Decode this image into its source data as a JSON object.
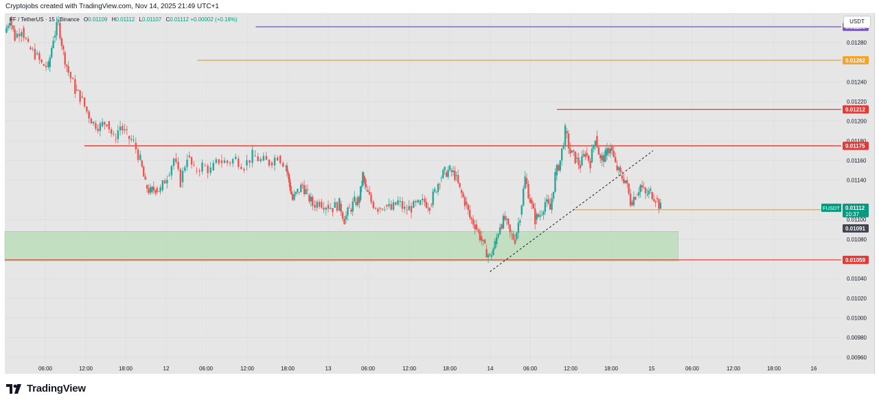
{
  "header": {
    "credit": "Cryptojobs created with TradingView.com, Nov 14, 2025 21:49 UTC+1"
  },
  "legend": {
    "symbol": "FF / TetherUS · 15 · Binance",
    "o_label": "O",
    "o": "0.01109",
    "h_label": "H",
    "h": "0.01112",
    "l_label": "L",
    "l": "0.01107",
    "c_label": "C",
    "c": "0.01112",
    "change": "+0.00002 (+0.18%)"
  },
  "currency_button": "USDT",
  "footer": {
    "brand": "TradingView"
  },
  "colors": {
    "up": "#26a69a",
    "down": "#ef5350",
    "red_level": "#e53935",
    "orange_level": "#f7a325",
    "purple_level": "#7e57c2",
    "zone_fill": "#b7dcb5",
    "current_badge": "#089981",
    "dark_badge": "#434651"
  },
  "chart_data": {
    "type": "candlestick",
    "ylim": [
      0.00955,
      0.0131
    ],
    "y_ticks": [
      "0.00960",
      "0.00980",
      "0.01000",
      "0.01020",
      "0.01040",
      "0.01080",
      "0.01100",
      "0.01140",
      "0.01160",
      "0.01180",
      "0.01200",
      "0.01220",
      "0.01240",
      "0.01280"
    ],
    "x_ticks": [
      "06:00",
      "12:00",
      "18:00",
      "12",
      "06:00",
      "12:00",
      "18:00",
      "13",
      "06:00",
      "12:00",
      "18:00",
      "14",
      "06:00",
      "12:00",
      "18:00",
      "15",
      "06:00",
      "12:00",
      "18:00",
      "16"
    ],
    "horizontal_levels": [
      {
        "value": 0.01296,
        "label": "0.01296",
        "color": "#7e57c2",
        "from": 0.3
      },
      {
        "value": 0.01262,
        "label": "0.01262",
        "color": "#f7a325",
        "from": 0.23
      },
      {
        "value": 0.01212,
        "label": "0.01212",
        "color": "#e53935",
        "from": 0.66
      },
      {
        "value": 0.01175,
        "label": "0.01175",
        "color": "#e53935",
        "from": 0.095
      },
      {
        "value": 0.0111,
        "label": "0.01110",
        "color": "#f7a325",
        "from": 0.68
      },
      {
        "value": 0.01059,
        "label": "0.01059",
        "color": "#e53935",
        "from": 0.0
      }
    ],
    "current_price": {
      "symbol": "FUSDT",
      "value": 0.01112,
      "label": "0.01112",
      "countdown": "10:37"
    },
    "marker_price": {
      "value": 0.01091,
      "label": "0.01091"
    },
    "demand_zone": {
      "y_top": 0.01088,
      "y_bottom": 0.01058,
      "x_from": 0.0,
      "x_to": 0.805
    },
    "trendline": {
      "x1": 0.58,
      "y1": 0.01047,
      "x2": 0.775,
      "y2": 0.0117,
      "style": "dashed"
    },
    "price_path": [
      [
        0.0,
        0.0129
      ],
      [
        0.006,
        0.01305
      ],
      [
        0.012,
        0.01285
      ],
      [
        0.02,
        0.01295
      ],
      [
        0.028,
        0.01275
      ],
      [
        0.036,
        0.01268
      ],
      [
        0.044,
        0.01258
      ],
      [
        0.052,
        0.01255
      ],
      [
        0.058,
        0.01285
      ],
      [
        0.064,
        0.013
      ],
      [
        0.07,
        0.0127
      ],
      [
        0.076,
        0.0125
      ],
      [
        0.084,
        0.01232
      ],
      [
        0.09,
        0.01225
      ],
      [
        0.098,
        0.0121
      ],
      [
        0.106,
        0.01198
      ],
      [
        0.114,
        0.01195
      ],
      [
        0.122,
        0.012
      ],
      [
        0.13,
        0.01182
      ],
      [
        0.138,
        0.01195
      ],
      [
        0.146,
        0.01185
      ],
      [
        0.154,
        0.01178
      ],
      [
        0.162,
        0.0116
      ],
      [
        0.168,
        0.01135
      ],
      [
        0.174,
        0.01128
      ],
      [
        0.18,
        0.01132
      ],
      [
        0.186,
        0.0113
      ],
      [
        0.194,
        0.01145
      ],
      [
        0.202,
        0.01162
      ],
      [
        0.21,
        0.01138
      ],
      [
        0.218,
        0.01165
      ],
      [
        0.226,
        0.0115
      ],
      [
        0.236,
        0.01155
      ],
      [
        0.246,
        0.0115
      ],
      [
        0.256,
        0.0116
      ],
      [
        0.266,
        0.01158
      ],
      [
        0.276,
        0.01162
      ],
      [
        0.286,
        0.01155
      ],
      [
        0.296,
        0.01165
      ],
      [
        0.306,
        0.0116
      ],
      [
        0.316,
        0.01158
      ],
      [
        0.326,
        0.01165
      ],
      [
        0.336,
        0.01155
      ],
      [
        0.34,
        0.01138
      ],
      [
        0.344,
        0.0112
      ],
      [
        0.35,
        0.01128
      ],
      [
        0.356,
        0.01135
      ],
      [
        0.362,
        0.01125
      ],
      [
        0.368,
        0.01115
      ],
      [
        0.376,
        0.01118
      ],
      [
        0.384,
        0.01115
      ],
      [
        0.392,
        0.01112
      ],
      [
        0.4,
        0.01116
      ],
      [
        0.406,
        0.011
      ],
      [
        0.412,
        0.0111
      ],
      [
        0.418,
        0.01118
      ],
      [
        0.424,
        0.0112
      ],
      [
        0.428,
        0.01145
      ],
      [
        0.432,
        0.0113
      ],
      [
        0.438,
        0.01118
      ],
      [
        0.446,
        0.01112
      ],
      [
        0.454,
        0.01115
      ],
      [
        0.462,
        0.0111
      ],
      [
        0.47,
        0.01118
      ],
      [
        0.478,
        0.0111
      ],
      [
        0.486,
        0.01112
      ],
      [
        0.494,
        0.01115
      ],
      [
        0.502,
        0.01118
      ],
      [
        0.508,
        0.01115
      ],
      [
        0.514,
        0.01128
      ],
      [
        0.52,
        0.01142
      ],
      [
        0.526,
        0.01148
      ],
      [
        0.532,
        0.0115
      ],
      [
        0.538,
        0.01145
      ],
      [
        0.544,
        0.0113
      ],
      [
        0.55,
        0.01118
      ],
      [
        0.556,
        0.01102
      ],
      [
        0.562,
        0.01095
      ],
      [
        0.568,
        0.01083
      ],
      [
        0.574,
        0.0107
      ],
      [
        0.58,
        0.01062
      ],
      [
        0.586,
        0.01075
      ],
      [
        0.592,
        0.01095
      ],
      [
        0.598,
        0.011
      ],
      [
        0.604,
        0.01085
      ],
      [
        0.61,
        0.0108
      ],
      [
        0.616,
        0.01105
      ],
      [
        0.622,
        0.01142
      ],
      [
        0.628,
        0.0112
      ],
      [
        0.634,
        0.011
      ],
      [
        0.64,
        0.01105
      ],
      [
        0.646,
        0.01118
      ],
      [
        0.652,
        0.0111
      ],
      [
        0.658,
        0.01145
      ],
      [
        0.664,
        0.0116
      ],
      [
        0.67,
        0.0119
      ],
      [
        0.676,
        0.01168
      ],
      [
        0.682,
        0.01162
      ],
      [
        0.688,
        0.01155
      ],
      [
        0.694,
        0.01168
      ],
      [
        0.7,
        0.01158
      ],
      [
        0.706,
        0.01185
      ],
      [
        0.712,
        0.0116
      ],
      [
        0.718,
        0.01165
      ],
      [
        0.724,
        0.01175
      ],
      [
        0.73,
        0.01155
      ],
      [
        0.736,
        0.01145
      ],
      [
        0.742,
        0.0114
      ],
      [
        0.748,
        0.01118
      ],
      [
        0.754,
        0.01125
      ],
      [
        0.76,
        0.01135
      ],
      [
        0.766,
        0.01125
      ],
      [
        0.772,
        0.01128
      ],
      [
        0.778,
        0.01122
      ],
      [
        0.784,
        0.01112
      ]
    ]
  }
}
